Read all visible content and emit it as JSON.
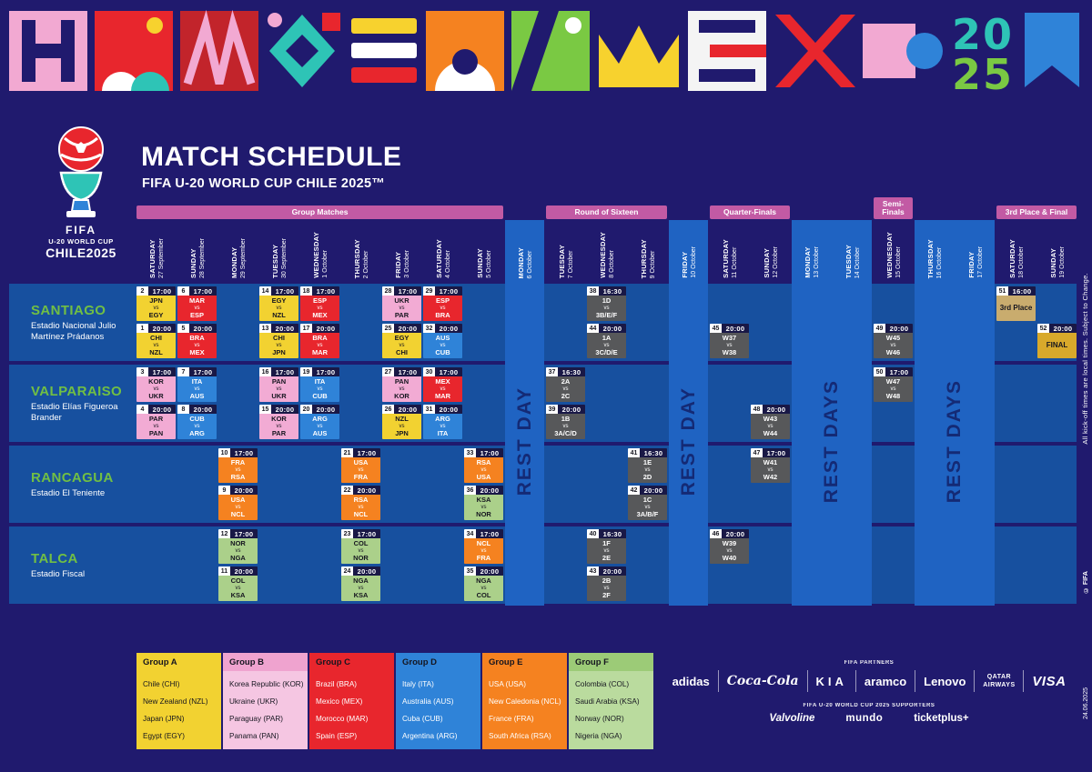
{
  "banner": {
    "year_top": "20",
    "year_bottom": "25"
  },
  "logo": {
    "line1": "FIFA",
    "line2": "U-20 WORLD CUP",
    "line3": "CHILE2025"
  },
  "header": {
    "title": "MATCH SCHEDULE",
    "subtitle": "FIFA U-20 WORLD CUP CHILE 2025™"
  },
  "labels": {
    "vs": "vs"
  },
  "phases": [
    {
      "label": "Group Matches",
      "start": 1,
      "end": 9
    },
    {
      "label": "Round of Sixteen",
      "start": 11,
      "end": 13
    },
    {
      "label": "Quarter-Finals",
      "start": 15,
      "end": 16
    },
    {
      "label": "Semi-Finals",
      "start": 19,
      "end": 19,
      "tall": true
    },
    {
      "label": "3rd Place & Final",
      "start": 22,
      "end": 23
    }
  ],
  "dates": [
    {
      "day": "SATURDAY",
      "date": "27 September"
    },
    {
      "day": "SUNDAY",
      "date": "28 September"
    },
    {
      "day": "MONDAY",
      "date": "29 September"
    },
    {
      "day": "TUESDAY",
      "date": "30 September"
    },
    {
      "day": "WEDNESDAY",
      "date": "1 October"
    },
    {
      "day": "THURSDAY",
      "date": "2 October"
    },
    {
      "day": "FRIDAY",
      "date": "3 October"
    },
    {
      "day": "SATURDAY",
      "date": "4 October"
    },
    {
      "day": "SUNDAY",
      "date": "5 October"
    },
    {
      "day": "MONDAY",
      "date": "6 October"
    },
    {
      "day": "TUESDAY",
      "date": "7 October"
    },
    {
      "day": "WEDNESDAY",
      "date": "8 October"
    },
    {
      "day": "THURSDAY",
      "date": "9 October"
    },
    {
      "day": "FRIDAY",
      "date": "10 October"
    },
    {
      "day": "SATURDAY",
      "date": "11 October"
    },
    {
      "day": "SUNDAY",
      "date": "12 October"
    },
    {
      "day": "MONDAY",
      "date": "13 October"
    },
    {
      "day": "TUESDAY",
      "date": "14 October"
    },
    {
      "day": "WEDNESDAY",
      "date": "15 October"
    },
    {
      "day": "THURSDAY",
      "date": "16 October"
    },
    {
      "day": "FRIDAY",
      "date": "17 October"
    },
    {
      "day": "SATURDAY",
      "date": "18 October"
    },
    {
      "day": "SUNDAY",
      "date": "19 October"
    }
  ],
  "rest_periods": [
    {
      "label": "REST DAY",
      "start": 10,
      "end": 10
    },
    {
      "label": "REST DAY",
      "start": 14,
      "end": 14
    },
    {
      "label": "REST DAYS",
      "start": 17,
      "end": 18
    },
    {
      "label": "REST DAYS",
      "start": 20,
      "end": 21
    }
  ],
  "venues": [
    {
      "city": "SANTIAGO",
      "stadium": "Estadio Nacional Julio Martínez Prádanos"
    },
    {
      "city": "VALPARAISO",
      "stadium": "Estadio Elías Figueroa Brander"
    },
    {
      "city": "RANCAGUA",
      "stadium": "Estadio El Teniente"
    },
    {
      "city": "TALCA",
      "stadium": "Estadio Fiscal"
    }
  ],
  "matches": [
    {
      "n": 1,
      "venue": 0,
      "slot": 1,
      "col": 1,
      "time": "20:00",
      "home": "CHI",
      "away": "NZL",
      "g": "A"
    },
    {
      "n": 2,
      "venue": 0,
      "slot": 0,
      "col": 1,
      "time": "17:00",
      "home": "JPN",
      "away": "EGY",
      "g": "A"
    },
    {
      "n": 3,
      "venue": 1,
      "slot": 0,
      "col": 1,
      "time": "17:00",
      "home": "KOR",
      "away": "UKR",
      "g": "B"
    },
    {
      "n": 4,
      "venue": 1,
      "slot": 1,
      "col": 1,
      "time": "20:00",
      "home": "PAR",
      "away": "PAN",
      "g": "B"
    },
    {
      "n": 5,
      "venue": 0,
      "slot": 1,
      "col": 2,
      "time": "20:00",
      "home": "BRA",
      "away": "MEX",
      "g": "C"
    },
    {
      "n": 6,
      "venue": 0,
      "slot": 0,
      "col": 2,
      "time": "17:00",
      "home": "MAR",
      "away": "ESP",
      "g": "C"
    },
    {
      "n": 7,
      "venue": 1,
      "slot": 0,
      "col": 2,
      "time": "17:00",
      "home": "ITA",
      "away": "AUS",
      "g": "D"
    },
    {
      "n": 8,
      "venue": 1,
      "slot": 1,
      "col": 2,
      "time": "20:00",
      "home": "CUB",
      "away": "ARG",
      "g": "D"
    },
    {
      "n": 9,
      "venue": 2,
      "slot": 1,
      "col": 3,
      "time": "20:00",
      "home": "USA",
      "away": "NCL",
      "g": "E"
    },
    {
      "n": 10,
      "venue": 2,
      "slot": 0,
      "col": 3,
      "time": "17:00",
      "home": "FRA",
      "away": "RSA",
      "g": "E"
    },
    {
      "n": 11,
      "venue": 3,
      "slot": 1,
      "col": 3,
      "time": "20:00",
      "home": "COL",
      "away": "KSA",
      "g": "F"
    },
    {
      "n": 12,
      "venue": 3,
      "slot": 0,
      "col": 3,
      "time": "17:00",
      "home": "NOR",
      "away": "NGA",
      "g": "F"
    },
    {
      "n": 13,
      "venue": 0,
      "slot": 1,
      "col": 4,
      "time": "20:00",
      "home": "CHI",
      "away": "JPN",
      "g": "A"
    },
    {
      "n": 14,
      "venue": 0,
      "slot": 0,
      "col": 4,
      "time": "17:00",
      "home": "EGY",
      "away": "NZL",
      "g": "A"
    },
    {
      "n": 15,
      "venue": 1,
      "slot": 1,
      "col": 4,
      "time": "20:00",
      "home": "KOR",
      "away": "PAR",
      "g": "B"
    },
    {
      "n": 16,
      "venue": 1,
      "slot": 0,
      "col": 4,
      "time": "17:00",
      "home": "PAN",
      "away": "UKR",
      "g": "B"
    },
    {
      "n": 17,
      "venue": 0,
      "slot": 1,
      "col": 5,
      "time": "20:00",
      "home": "BRA",
      "away": "MAR",
      "g": "C"
    },
    {
      "n": 18,
      "venue": 0,
      "slot": 0,
      "col": 5,
      "time": "17:00",
      "home": "ESP",
      "away": "MEX",
      "g": "C"
    },
    {
      "n": 19,
      "venue": 1,
      "slot": 0,
      "col": 5,
      "time": "17:00",
      "home": "ITA",
      "away": "CUB",
      "g": "D"
    },
    {
      "n": 20,
      "venue": 1,
      "slot": 1,
      "col": 5,
      "time": "20:00",
      "home": "ARG",
      "away": "AUS",
      "g": "D"
    },
    {
      "n": 21,
      "venue": 2,
      "slot": 0,
      "col": 6,
      "time": "17:00",
      "home": "USA",
      "away": "FRA",
      "g": "E"
    },
    {
      "n": 22,
      "venue": 2,
      "slot": 1,
      "col": 6,
      "time": "20:00",
      "home": "RSA",
      "away": "NCL",
      "g": "E"
    },
    {
      "n": 23,
      "venue": 3,
      "slot": 0,
      "col": 6,
      "time": "17:00",
      "home": "COL",
      "away": "NOR",
      "g": "F"
    },
    {
      "n": 24,
      "venue": 3,
      "slot": 1,
      "col": 6,
      "time": "20:00",
      "home": "NGA",
      "away": "KSA",
      "g": "F"
    },
    {
      "n": 25,
      "venue": 0,
      "slot": 1,
      "col": 7,
      "time": "20:00",
      "home": "EGY",
      "away": "CHI",
      "g": "A"
    },
    {
      "n": 26,
      "venue": 1,
      "slot": 1,
      "col": 7,
      "time": "20:00",
      "home": "NZL",
      "away": "JPN",
      "g": "A"
    },
    {
      "n": 27,
      "venue": 1,
      "slot": 0,
      "col": 7,
      "time": "17:00",
      "home": "PAN",
      "away": "KOR",
      "g": "B"
    },
    {
      "n": 28,
      "venue": 0,
      "slot": 0,
      "col": 7,
      "time": "17:00",
      "home": "UKR",
      "away": "PAR",
      "g": "B"
    },
    {
      "n": 29,
      "venue": 0,
      "slot": 0,
      "col": 8,
      "time": "17:00",
      "home": "ESP",
      "away": "BRA",
      "g": "C"
    },
    {
      "n": 30,
      "venue": 1,
      "slot": 0,
      "col": 8,
      "time": "17:00",
      "home": "MEX",
      "away": "MAR",
      "g": "C"
    },
    {
      "n": 31,
      "venue": 1,
      "slot": 1,
      "col": 8,
      "time": "20:00",
      "home": "ARG",
      "away": "ITA",
      "g": "D"
    },
    {
      "n": 32,
      "venue": 0,
      "slot": 1,
      "col": 8,
      "time": "20:00",
      "home": "AUS",
      "away": "CUB",
      "g": "D"
    },
    {
      "n": 33,
      "venue": 2,
      "slot": 0,
      "col": 9,
      "time": "17:00",
      "home": "RSA",
      "away": "USA",
      "g": "E"
    },
    {
      "n": 34,
      "venue": 3,
      "slot": 0,
      "col": 9,
      "time": "17:00",
      "home": "NCL",
      "away": "FRA",
      "g": "E"
    },
    {
      "n": 35,
      "venue": 3,
      "slot": 1,
      "col": 9,
      "time": "20:00",
      "home": "NGA",
      "away": "COL",
      "g": "F"
    },
    {
      "n": 36,
      "venue": 2,
      "slot": 1,
      "col": 9,
      "time": "20:00",
      "home": "KSA",
      "away": "NOR",
      "g": "F"
    },
    {
      "n": 37,
      "venue": 1,
      "slot": 0,
      "col": 11,
      "time": "16:30",
      "home": "2A",
      "away": "2C",
      "g": "K"
    },
    {
      "n": 38,
      "venue": 0,
      "slot": 0,
      "col": 12,
      "time": "16:30",
      "home": "1D",
      "away": "3B/E/F",
      "g": "K"
    },
    {
      "n": 39,
      "venue": 1,
      "slot": 1,
      "col": 11,
      "time": "20:00",
      "home": "1B",
      "away": "3A/C/D",
      "g": "K"
    },
    {
      "n": 40,
      "venue": 3,
      "slot": 0,
      "col": 12,
      "time": "16:30",
      "home": "1F",
      "away": "2E",
      "g": "K"
    },
    {
      "n": 41,
      "venue": 2,
      "slot": 0,
      "col": 13,
      "time": "16:30",
      "home": "1E",
      "away": "2D",
      "g": "K"
    },
    {
      "n": 42,
      "venue": 2,
      "slot": 1,
      "col": 13,
      "time": "20:00",
      "home": "1C",
      "away": "3A/B/F",
      "g": "K"
    },
    {
      "n": 43,
      "venue": 3,
      "slot": 1,
      "col": 12,
      "time": "20:00",
      "home": "2B",
      "away": "2F",
      "g": "K"
    },
    {
      "n": 44,
      "venue": 0,
      "slot": 1,
      "col": 12,
      "time": "20:00",
      "home": "1A",
      "away": "3C/D/E",
      "g": "K"
    },
    {
      "n": 45,
      "venue": 0,
      "slot": 1,
      "col": 15,
      "time": "20:00",
      "home": "W37",
      "away": "W38",
      "g": "K"
    },
    {
      "n": 46,
      "venue": 3,
      "slot": 0,
      "col": 15,
      "time": "20:00",
      "home": "W39",
      "away": "W40",
      "g": "K"
    },
    {
      "n": 47,
      "venue": 2,
      "slot": 0,
      "col": 16,
      "time": "17:00",
      "home": "W41",
      "away": "W42",
      "g": "K"
    },
    {
      "n": 48,
      "venue": 1,
      "slot": 1,
      "col": 16,
      "time": "20:00",
      "home": "W43",
      "away": "W44",
      "g": "K"
    },
    {
      "n": 49,
      "venue": 0,
      "slot": 1,
      "col": 19,
      "time": "20:00",
      "home": "W45",
      "away": "W46",
      "g": "K"
    },
    {
      "n": 50,
      "venue": 1,
      "slot": 0,
      "col": 19,
      "time": "17:00",
      "home": "W47",
      "away": "W48",
      "g": "K"
    },
    {
      "n": 51,
      "venue": 0,
      "slot": 0,
      "col": 22,
      "time": "16:00",
      "label": "3rd Place",
      "g": "P"
    },
    {
      "n": 52,
      "venue": 0,
      "slot": 1,
      "col": 23,
      "time": "20:00",
      "label": "FINAL",
      "g": "G"
    }
  ],
  "groups": [
    {
      "name": "Group A",
      "header": "#F2D231",
      "header_text": "#15151F",
      "body": "#F2D231",
      "teams_text": "#15151F",
      "teams": [
        "Chile (CHI)",
        "New Zealand (NZL)",
        "Japan (JPN)",
        "Egypt (EGY)"
      ]
    },
    {
      "name": "Group B",
      "header": "#EFA3CF",
      "header_text": "#15151F",
      "body": "#F5C6E2",
      "teams_text": "#15151F",
      "teams": [
        "Korea Republic (KOR)",
        "Ukraine (UKR)",
        "Paraguay (PAR)",
        "Panama (PAN)"
      ]
    },
    {
      "name": "Group C",
      "header": "#E8262D",
      "header_text": "#15151F",
      "body": "#E8262D",
      "teams_text": "#FFFFFF",
      "teams": [
        "Brazil (BRA)",
        "Mexico (MEX)",
        "Morocco (MAR)",
        "Spain (ESP)"
      ]
    },
    {
      "name": "Group D",
      "header": "#2F83D8",
      "header_text": "#15151F",
      "body": "#2F83D8",
      "teams_text": "#FFFFFF",
      "teams": [
        "Italy (ITA)",
        "Australia (AUS)",
        "Cuba (CUB)",
        "Argentina (ARG)"
      ]
    },
    {
      "name": "Group E",
      "header": "#F58220",
      "header_text": "#15151F",
      "body": "#F58220",
      "teams_text": "#FFFFFF",
      "teams": [
        "USA (USA)",
        "New Caledonia (NCL)",
        "France (FRA)",
        "South Africa (RSA)"
      ]
    },
    {
      "name": "Group F",
      "header": "#9CCB77",
      "header_text": "#15151F",
      "body": "#BADB9E",
      "teams_text": "#15151F",
      "teams": [
        "Colombia (COL)",
        "Saudi Arabia (KSA)",
        "Norway (NOR)",
        "Nigeria (NGA)"
      ]
    }
  ],
  "sponsors": {
    "partners_label": "FIFA PARTNERS",
    "partners": [
      "adidas",
      "Coca-Cola",
      "KIA",
      "aramco",
      "Lenovo",
      "QATAR AIRWAYS",
      "VISA"
    ],
    "supporters_label": "FIFA U-20 WORLD CUP 2025 SUPPORTERS",
    "supporters": [
      "Valvoline",
      "mundo",
      "ticketplus+"
    ]
  },
  "notes": {
    "kickoff": "All kick-off times are local times. Subject to Change.",
    "copyright": "© FIFA",
    "date": "24.06.2025"
  },
  "colors": {
    "bg": "#201A6E",
    "band": "#17509F",
    "rest": "#1F63C2",
    "rest_text": "#142A75",
    "phase": "#C25AA4",
    "time_badge": "#191846",
    "venue_city": "#71BF44",
    "groups": {
      "A": {
        "bg": "#F2D231",
        "text": "#15151F"
      },
      "B": {
        "bg": "#F2ABD4",
        "text": "#15151F"
      },
      "C": {
        "bg": "#E8262D",
        "text": "#FFFFFF"
      },
      "D": {
        "bg": "#2F83D8",
        "text": "#FFFFFF"
      },
      "E": {
        "bg": "#F58220",
        "text": "#FFFFFF"
      },
      "F": {
        "bg": "#ABD08A",
        "text": "#15151F"
      },
      "K": {
        "bg": "#57585A",
        "text": "#FFFFFF"
      },
      "P": {
        "bg": "#C9AC6E",
        "text": "#15151F"
      },
      "G": {
        "bg": "#D8A92B",
        "text": "#15151F"
      }
    }
  }
}
